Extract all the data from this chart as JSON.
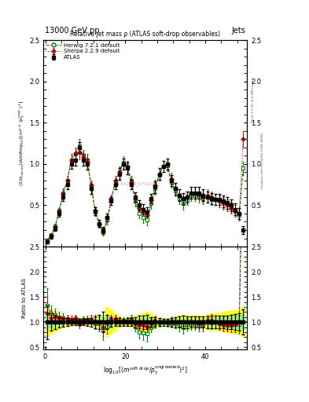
{
  "title_main": "13000 GeV pp",
  "title_right": "Jets",
  "plot_title": "Relative jet mass ρ (ATLAS soft-drop observables)",
  "ylabel_main": "(1/σ_{resum}) dσ/d log_{10}[(m^{soft drop}/p_T^{ungroomed})^2]",
  "ylabel_ratio": "Ratio to ATLAS",
  "watermark": "ATLAS 2019_I1772371",
  "right_label1": "Rivet 3.1.10, ≥ 2.9M events",
  "right_label2": "mcplots.cern.ch [arXiv:1306.3436]",
  "xlim": [
    -0.5,
    50.5
  ],
  "ylim_main": [
    0,
    2.5
  ],
  "ylim_ratio": [
    0.45,
    2.5
  ],
  "legend_entries": [
    "ATLAS",
    "Herwig 7.2.1 default",
    "Sherpa 2.2.9 default"
  ],
  "atlas_x": [
    0.5,
    1.5,
    2.5,
    3.5,
    4.5,
    5.5,
    6.5,
    7.5,
    8.5,
    9.5,
    10.5,
    11.5,
    12.5,
    13.5,
    14.5,
    15.5,
    16.5,
    17.5,
    18.5,
    19.5,
    20.5,
    21.5,
    22.5,
    23.5,
    24.5,
    25.5,
    26.5,
    27.5,
    28.5,
    29.5,
    30.5,
    31.5,
    32.5,
    33.5,
    34.5,
    35.5,
    36.5,
    37.5,
    38.5,
    39.5,
    40.5,
    41.5,
    42.5,
    43.5,
    44.5,
    45.5,
    46.5,
    47.5,
    48.5,
    49.5
  ],
  "atlas_y": [
    0.06,
    0.12,
    0.22,
    0.4,
    0.6,
    0.75,
    1.0,
    1.05,
    1.2,
    1.05,
    1.0,
    0.7,
    0.43,
    0.28,
    0.2,
    0.35,
    0.55,
    0.75,
    0.88,
    1.0,
    0.95,
    0.75,
    0.6,
    0.5,
    0.45,
    0.42,
    0.58,
    0.72,
    0.88,
    0.97,
    1.0,
    0.8,
    0.7,
    0.62,
    0.58,
    0.6,
    0.65,
    0.65,
    0.65,
    0.62,
    0.6,
    0.58,
    0.57,
    0.57,
    0.55,
    0.53,
    0.5,
    0.45,
    0.4,
    0.2
  ],
  "atlas_yerr": [
    0.02,
    0.02,
    0.03,
    0.04,
    0.05,
    0.06,
    0.06,
    0.07,
    0.07,
    0.07,
    0.07,
    0.06,
    0.05,
    0.04,
    0.04,
    0.05,
    0.05,
    0.06,
    0.07,
    0.07,
    0.07,
    0.06,
    0.06,
    0.06,
    0.06,
    0.06,
    0.06,
    0.07,
    0.07,
    0.07,
    0.07,
    0.07,
    0.07,
    0.07,
    0.07,
    0.07,
    0.07,
    0.07,
    0.07,
    0.07,
    0.07,
    0.07,
    0.07,
    0.07,
    0.07,
    0.07,
    0.07,
    0.07,
    0.07,
    0.05
  ],
  "herwig_x": [
    0.5,
    1.5,
    2.5,
    3.5,
    4.5,
    5.5,
    6.5,
    7.5,
    8.5,
    9.5,
    10.5,
    11.5,
    12.5,
    13.5,
    14.5,
    15.5,
    16.5,
    17.5,
    18.5,
    19.5,
    20.5,
    21.5,
    22.5,
    23.5,
    24.5,
    25.5,
    26.5,
    27.5,
    28.5,
    29.5,
    30.5,
    31.5,
    32.5,
    33.5,
    34.5,
    35.5,
    36.5,
    37.5,
    38.5,
    39.5,
    40.5,
    41.5,
    42.5,
    43.5,
    44.5,
    45.5,
    46.5,
    47.5,
    48.5,
    49.5
  ],
  "herwig_y": [
    0.08,
    0.14,
    0.25,
    0.44,
    0.65,
    0.8,
    1.05,
    1.12,
    1.22,
    1.1,
    1.05,
    0.73,
    0.42,
    0.27,
    0.17,
    0.32,
    0.55,
    0.78,
    0.9,
    1.02,
    0.97,
    0.8,
    0.55,
    0.4,
    0.35,
    0.32,
    0.52,
    0.7,
    0.87,
    0.97,
    0.98,
    0.78,
    0.68,
    0.58,
    0.52,
    0.57,
    0.62,
    0.62,
    0.6,
    0.58,
    0.6,
    0.57,
    0.57,
    0.55,
    0.53,
    0.5,
    0.47,
    0.43,
    0.38,
    0.95
  ],
  "herwig_yerr": [
    0.02,
    0.02,
    0.03,
    0.04,
    0.05,
    0.06,
    0.07,
    0.07,
    0.08,
    0.07,
    0.07,
    0.06,
    0.05,
    0.04,
    0.04,
    0.05,
    0.05,
    0.06,
    0.07,
    0.07,
    0.07,
    0.06,
    0.06,
    0.06,
    0.06,
    0.06,
    0.06,
    0.07,
    0.07,
    0.07,
    0.07,
    0.07,
    0.07,
    0.07,
    0.07,
    0.07,
    0.07,
    0.07,
    0.07,
    0.07,
    0.07,
    0.07,
    0.07,
    0.07,
    0.07,
    0.07,
    0.07,
    0.07,
    0.07,
    0.08
  ],
  "sherpa_x": [
    0.5,
    1.5,
    2.5,
    3.5,
    4.5,
    5.5,
    6.5,
    7.5,
    8.5,
    9.5,
    10.5,
    11.5,
    12.5,
    13.5,
    14.5,
    15.5,
    16.5,
    17.5,
    18.5,
    19.5,
    20.5,
    21.5,
    22.5,
    23.5,
    24.5,
    25.5,
    26.5,
    27.5,
    28.5,
    29.5,
    30.5,
    31.5,
    32.5,
    33.5,
    34.5,
    35.5,
    36.5,
    37.5,
    38.5,
    39.5,
    40.5,
    41.5,
    42.5,
    43.5,
    44.5,
    45.5,
    46.5,
    47.5,
    48.5,
    49.5
  ],
  "sherpa_y": [
    0.07,
    0.13,
    0.24,
    0.43,
    0.64,
    0.8,
    1.05,
    1.13,
    1.14,
    1.08,
    1.03,
    0.74,
    0.44,
    0.28,
    0.18,
    0.35,
    0.58,
    0.8,
    0.9,
    1.0,
    0.97,
    0.78,
    0.58,
    0.47,
    0.42,
    0.38,
    0.56,
    0.74,
    0.88,
    0.97,
    1.0,
    0.82,
    0.7,
    0.62,
    0.58,
    0.6,
    0.65,
    0.65,
    0.63,
    0.6,
    0.62,
    0.6,
    0.57,
    0.55,
    0.52,
    0.5,
    0.47,
    0.43,
    0.4,
    1.3
  ],
  "sherpa_yerr": [
    0.02,
    0.02,
    0.03,
    0.04,
    0.05,
    0.06,
    0.07,
    0.07,
    0.08,
    0.07,
    0.07,
    0.06,
    0.05,
    0.04,
    0.04,
    0.05,
    0.05,
    0.06,
    0.07,
    0.07,
    0.07,
    0.06,
    0.06,
    0.06,
    0.06,
    0.06,
    0.06,
    0.07,
    0.07,
    0.07,
    0.07,
    0.07,
    0.07,
    0.07,
    0.07,
    0.07,
    0.07,
    0.07,
    0.07,
    0.07,
    0.07,
    0.07,
    0.07,
    0.07,
    0.07,
    0.07,
    0.07,
    0.07,
    0.07,
    0.1
  ],
  "band_x_edges": [
    0,
    1,
    2,
    3,
    4,
    5,
    6,
    7,
    8,
    9,
    10,
    11,
    12,
    13,
    14,
    15,
    16,
    17,
    18,
    19,
    20,
    21,
    22,
    23,
    24,
    25,
    26,
    27,
    28,
    29,
    30,
    31,
    32,
    33,
    34,
    35,
    36,
    37,
    38,
    39,
    40,
    41,
    42,
    43,
    44,
    45,
    46,
    47,
    48,
    49,
    50
  ],
  "band_yellow_lo": [
    0.7,
    0.75,
    0.8,
    0.85,
    0.88,
    0.9,
    0.92,
    0.93,
    0.93,
    0.93,
    0.93,
    0.92,
    0.9,
    0.88,
    0.85,
    0.7,
    0.75,
    0.82,
    0.88,
    0.92,
    0.93,
    0.9,
    0.88,
    0.85,
    0.82,
    0.8,
    0.82,
    0.87,
    0.92,
    0.94,
    0.94,
    0.92,
    0.9,
    0.88,
    0.85,
    0.85,
    0.87,
    0.88,
    0.88,
    0.88,
    0.85,
    0.83,
    0.83,
    0.82,
    0.8,
    0.78,
    0.77,
    0.76,
    0.75,
    0.7
  ],
  "band_yellow_hi": [
    1.3,
    1.25,
    1.2,
    1.15,
    1.12,
    1.1,
    1.08,
    1.07,
    1.07,
    1.07,
    1.07,
    1.08,
    1.1,
    1.12,
    1.15,
    1.3,
    1.25,
    1.18,
    1.12,
    1.08,
    1.07,
    1.1,
    1.12,
    1.15,
    1.18,
    1.2,
    1.18,
    1.13,
    1.08,
    1.06,
    1.06,
    1.08,
    1.1,
    1.12,
    1.15,
    1.15,
    1.13,
    1.12,
    1.12,
    1.12,
    1.15,
    1.17,
    1.17,
    1.18,
    1.2,
    1.22,
    1.23,
    1.24,
    1.25,
    1.3
  ],
  "band_green_lo": [
    0.85,
    0.87,
    0.9,
    0.92,
    0.93,
    0.94,
    0.95,
    0.96,
    0.96,
    0.96,
    0.96,
    0.95,
    0.93,
    0.92,
    0.9,
    0.85,
    0.88,
    0.92,
    0.95,
    0.96,
    0.97,
    0.95,
    0.93,
    0.92,
    0.9,
    0.88,
    0.9,
    0.93,
    0.96,
    0.97,
    0.97,
    0.95,
    0.94,
    0.93,
    0.92,
    0.92,
    0.93,
    0.94,
    0.94,
    0.94,
    0.92,
    0.91,
    0.91,
    0.9,
    0.89,
    0.88,
    0.87,
    0.86,
    0.85,
    0.82
  ],
  "band_green_hi": [
    1.15,
    1.13,
    1.1,
    1.08,
    1.07,
    1.06,
    1.05,
    1.04,
    1.04,
    1.04,
    1.04,
    1.05,
    1.07,
    1.08,
    1.1,
    1.15,
    1.12,
    1.08,
    1.05,
    1.04,
    1.03,
    1.05,
    1.07,
    1.08,
    1.1,
    1.12,
    1.1,
    1.07,
    1.04,
    1.03,
    1.03,
    1.05,
    1.06,
    1.07,
    1.08,
    1.08,
    1.07,
    1.06,
    1.06,
    1.06,
    1.08,
    1.09,
    1.09,
    1.1,
    1.11,
    1.12,
    1.13,
    1.14,
    1.15,
    1.18
  ],
  "atlas_color": "#000000",
  "herwig_color": "#008800",
  "sherpa_color": "#cc0000",
  "bg_color": "#ffffff",
  "xticks": [
    0,
    20,
    40
  ],
  "xtick_labels": [
    "0",
    "20",
    "40"
  ],
  "yticks_main": [
    0.5,
    1.0,
    1.5,
    2.0,
    2.5
  ],
  "yticks_ratio": [
    0.5,
    1.0,
    1.5,
    2.0,
    2.5
  ]
}
